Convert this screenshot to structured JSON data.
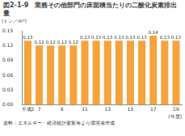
{
  "chart_data": {
    "type": "bar",
    "title": "図2-1-9　業務その他部門の床面積当たりの二酸化炭素排出量",
    "y_label": "(トン／m²)",
    "x_label": "(年度)",
    "source": "資料：エネルギー・経済統計要覧等より環境省作成",
    "categories": [
      "平成2",
      "7",
      null,
      "9",
      null,
      "11",
      null,
      "13",
      null,
      "15",
      null,
      "17",
      null,
      "19"
    ],
    "values": [
      0.13,
      0.12,
      0.12,
      0.12,
      0.12,
      0.13,
      0.13,
      0.13,
      0.13,
      0.13,
      0.13,
      0.14,
      0.13,
      0.13
    ],
    "color": "#f5a33c",
    "ylim": [
      0,
      0.15
    ],
    "yticks": [
      {
        "value": 0,
        "label": "0.00"
      },
      {
        "value": 0.03,
        "label": "0.03"
      },
      {
        "value": 0.06,
        "label": "0.06"
      },
      {
        "value": 0.09,
        "label": "0.09"
      },
      {
        "value": 0.12,
        "label": "0.12"
      },
      {
        "value": 0.15,
        "label": "0.15"
      }
    ],
    "grid": false,
    "data_labels": true
  }
}
